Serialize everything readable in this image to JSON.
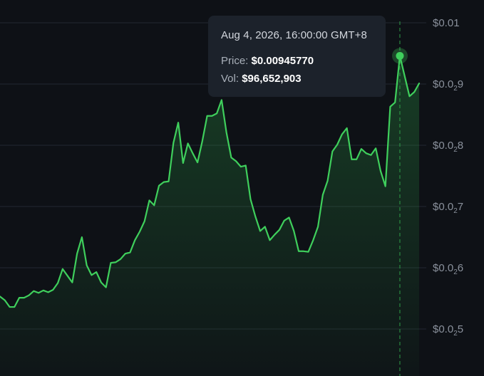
{
  "chart_data": {
    "type": "area",
    "y_axis": {
      "position": "right",
      "ticks": [
        {
          "value": 0.01,
          "text": "$0.01",
          "sub": ""
        },
        {
          "value": 0.009,
          "text": "$0.0",
          "sub": "2",
          "tail": "9"
        },
        {
          "value": 0.008,
          "text": "$0.0",
          "sub": "2",
          "tail": "8"
        },
        {
          "value": 0.007,
          "text": "$0.0",
          "sub": "2",
          "tail": "7"
        },
        {
          "value": 0.006,
          "text": "$0.0",
          "sub": "2",
          "tail": "6"
        },
        {
          "value": 0.005,
          "text": "$0.0",
          "sub": "2",
          "tail": "5"
        }
      ],
      "ylim": [
        0.0044,
        0.01025
      ]
    },
    "grid": "horizontal",
    "line_color": "#3fcf5c",
    "values": [
      0.00553,
      0.00547,
      0.00536,
      0.00536,
      0.00551,
      0.00551,
      0.00555,
      0.00562,
      0.00559,
      0.00563,
      0.0056,
      0.00564,
      0.00575,
      0.00598,
      0.00587,
      0.00576,
      0.00623,
      0.0065,
      0.00604,
      0.00588,
      0.00593,
      0.00576,
      0.00568,
      0.00608,
      0.00609,
      0.00614,
      0.00623,
      0.00625,
      0.00645,
      0.00659,
      0.00676,
      0.0071,
      0.00702,
      0.00734,
      0.0074,
      0.00741,
      0.00804,
      0.00837,
      0.00771,
      0.00803,
      0.00787,
      0.00772,
      0.00807,
      0.00848,
      0.00848,
      0.00852,
      0.00874,
      0.00821,
      0.0078,
      0.00774,
      0.00765,
      0.00767,
      0.00712,
      0.00684,
      0.0066,
      0.00667,
      0.00645,
      0.00654,
      0.00662,
      0.00677,
      0.00682,
      0.0066,
      0.00627,
      0.00627,
      0.00626,
      0.00645,
      0.00667,
      0.00719,
      0.00742,
      0.0079,
      0.00801,
      0.00818,
      0.00828,
      0.00777,
      0.00777,
      0.00794,
      0.00787,
      0.00784,
      0.00795,
      0.00758,
      0.00733,
      0.00863,
      0.0087,
      0.00946,
      0.00913,
      0.0088,
      0.00887,
      0.00901
    ],
    "highlight_index": 83
  },
  "tooltip": {
    "date": "Aug 4, 2026, 16:00:00 GMT+8",
    "price_label": "Price:",
    "price_value": "$0.00945770",
    "vol_label": "Vol:",
    "vol_value": "$96,652,903"
  }
}
